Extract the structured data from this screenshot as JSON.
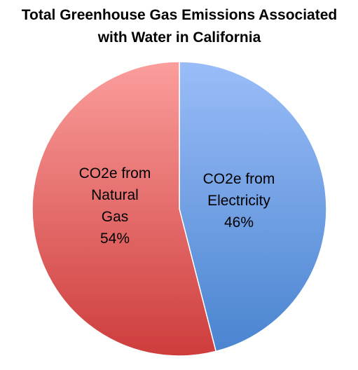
{
  "chart_data": {
    "type": "pie",
    "title": "Total Greenhouse Gas Emissions Associated with Water in California",
    "title_lines": [
      "Total Greenhouse Gas Emissions Associated",
      "with Water in California"
    ],
    "slices": [
      {
        "category": "CO2e from Electricity",
        "value": 46,
        "percent_label": "46%",
        "label_lines": [
          "CO2e from",
          "Electricity",
          "46%"
        ],
        "color_light": "#9ABDF8",
        "color_dark": "#4A84D0"
      },
      {
        "category": "CO2e from Natural Gas",
        "value": 54,
        "percent_label": "54%",
        "label_lines": [
          "CO2e from",
          "Natural",
          "Gas",
          "54%"
        ],
        "color_light": "#FB9E9C",
        "color_dark": "#CD3D3C"
      }
    ],
    "start_angle": "12 o'clock",
    "direction": "clockwise",
    "legend": "none",
    "data_labels": "inside slices"
  }
}
